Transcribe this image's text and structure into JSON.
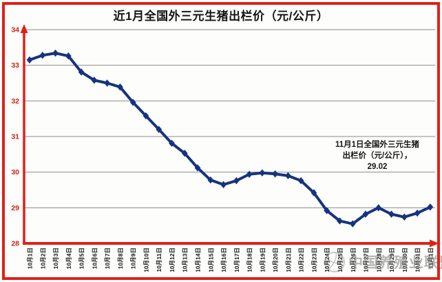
{
  "page": {
    "title": "近1月全国外三元生猪出栏价（元/公斤）"
  },
  "chart_data": {
    "type": "line",
    "title": "近1月全国外三元生猪出栏价（元/公斤）",
    "categories": [
      "10月1日",
      "10月2日",
      "10月3日",
      "10月4日",
      "10月5日",
      "10月6日",
      "10月7日",
      "10月8日",
      "10月9日",
      "10月10日",
      "10月11日",
      "10月12日",
      "10月13日",
      "10月14日",
      "10月15日",
      "10月16日",
      "10月17日",
      "10月18日",
      "10月19日",
      "10月20日",
      "10月21日",
      "10月22日",
      "10月23日",
      "10月24日",
      "10月25日",
      "10月26日",
      "10月27日",
      "10月28日",
      "10月29日",
      "10月30日",
      "10月31日",
      "11月1日"
    ],
    "series": [
      {
        "name": "全国外三元生猪出栏价",
        "values": [
          33.15,
          33.28,
          33.34,
          33.26,
          32.81,
          32.58,
          32.5,
          32.39,
          31.96,
          31.58,
          31.2,
          30.81,
          30.53,
          30.12,
          29.78,
          29.65,
          29.76,
          29.94,
          29.98,
          29.95,
          29.9,
          29.76,
          29.42,
          28.92,
          28.63,
          28.55,
          28.82,
          29.0,
          28.82,
          28.74,
          28.85,
          29.02
        ]
      }
    ],
    "xlabel": "",
    "ylabel": "",
    "ylim": [
      28,
      34
    ],
    "yticks": [
      28,
      29,
      30,
      31,
      32,
      33,
      34
    ],
    "grid": true,
    "legend_position": "none",
    "annotation": {
      "lines": [
        "11月1日全国外三元生猪",
        "出栏价（元/公斤），",
        "29.02"
      ]
    },
    "colors": {
      "line": "#16337e",
      "marker": "#16337e",
      "axis": "#df2118",
      "tick_label": "#d41f15",
      "grid": "#8c8c8c",
      "text": "#141414",
      "border": "#df2118",
      "background": "#fdfdfb",
      "watermark": "#8a8a8a"
    }
  },
  "watermark": {
    "text": "中国养殖业联盟",
    "icon": "globe-logo"
  }
}
